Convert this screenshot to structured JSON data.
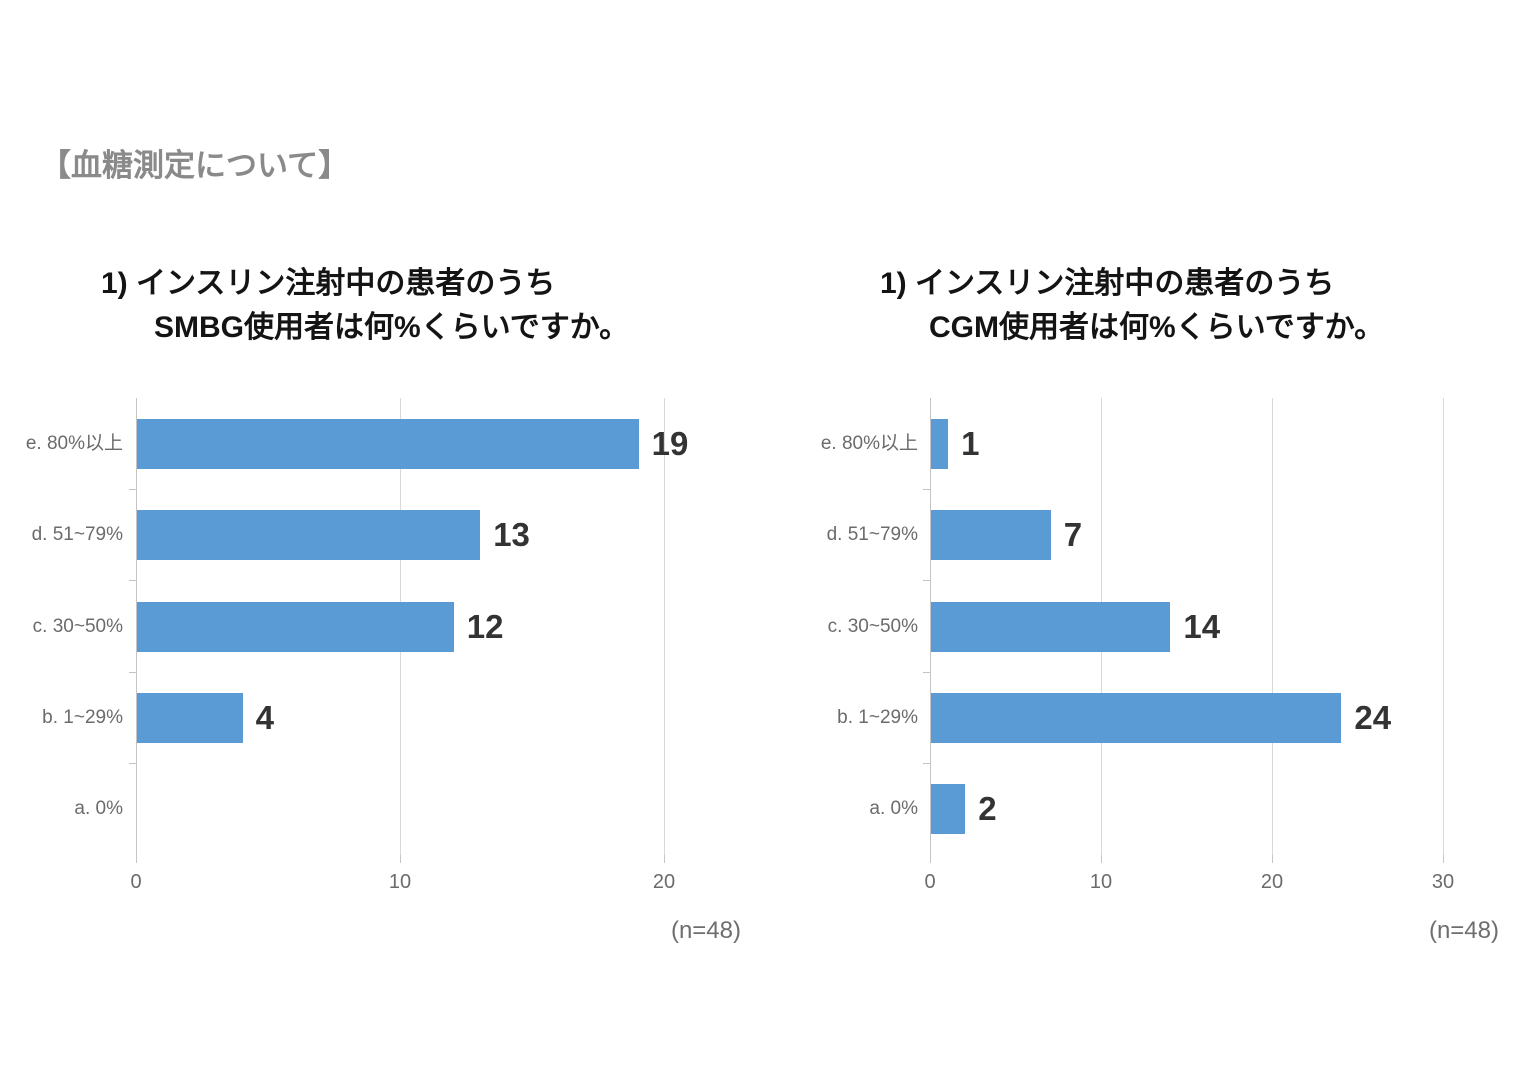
{
  "page": {
    "header": "【血糖測定について】"
  },
  "colors": {
    "bar": "#5B9BD5",
    "header_text": "#8A8A8A",
    "axis_text": "#6B6B6B",
    "value_label_text": "#333333",
    "gridline": "#D9D9D9",
    "axis_line": "#C4C4C4"
  },
  "chart_data": [
    {
      "id": "smbg",
      "type": "bar",
      "orientation": "horizontal",
      "title_lines": [
        "1) インスリン注射中の患者のうち",
        "SMBG使用者は何%くらいですか。"
      ],
      "categories": [
        "e. 80%以上",
        "d. 51~79%",
        "c. 30~50%",
        "b. 1~29%",
        "a. 0%"
      ],
      "values": [
        19,
        13,
        12,
        4,
        0
      ],
      "xlim": [
        0,
        20
      ],
      "xticks": [
        0,
        10,
        20
      ],
      "n_label": "(n=48)",
      "bar_color": "#5B9BD5",
      "grid": true,
      "legend": false,
      "value_labels": true
    },
    {
      "id": "cgm",
      "type": "bar",
      "orientation": "horizontal",
      "title_lines": [
        "1) インスリン注射中の患者のうち",
        "CGM使用者は何%くらいですか。"
      ],
      "categories": [
        "e. 80%以上",
        "d. 51~79%",
        "c. 30~50%",
        "b. 1~29%",
        "a. 0%"
      ],
      "values": [
        1,
        7,
        14,
        24,
        2
      ],
      "xlim": [
        0,
        30
      ],
      "xticks": [
        0,
        10,
        20,
        30
      ],
      "n_label": "(n=48)",
      "bar_color": "#5B9BD5",
      "grid": true,
      "legend": false,
      "value_labels": true
    }
  ]
}
